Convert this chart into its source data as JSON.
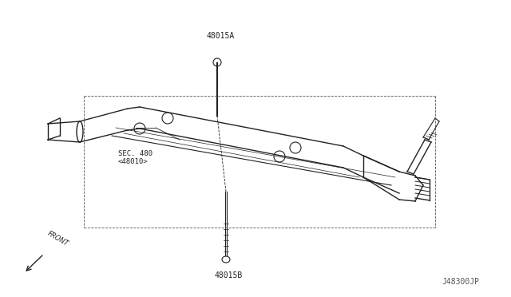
{
  "bg_color": "#ffffff",
  "line_color": "#222222",
  "label_48015A": "48015A",
  "label_48015B": "48015B",
  "label_sec": "SEC. 480",
  "label_sec2": "<48010>",
  "label_front": "FRONT",
  "label_code": "J48300JP",
  "fig_width": 6.4,
  "fig_height": 3.72,
  "dpi": 100
}
